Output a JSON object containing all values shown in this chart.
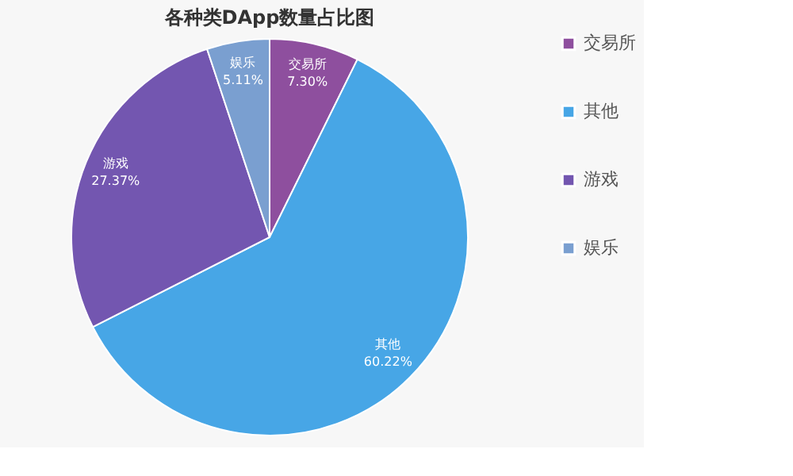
{
  "chart_data": {
    "type": "pie",
    "title": "各种类DApp数量占比图",
    "categories": [
      "交易所",
      "其他",
      "游戏",
      "娱乐"
    ],
    "values": [
      7.3,
      60.22,
      27.37,
      5.11
    ],
    "colors": [
      "#8e4f9e",
      "#47a6e6",
      "#7356b0",
      "#7a9fd0"
    ],
    "value_labels": [
      "7.30%",
      "60.22%",
      "27.37%",
      "5.11%"
    ],
    "legend": "right"
  }
}
